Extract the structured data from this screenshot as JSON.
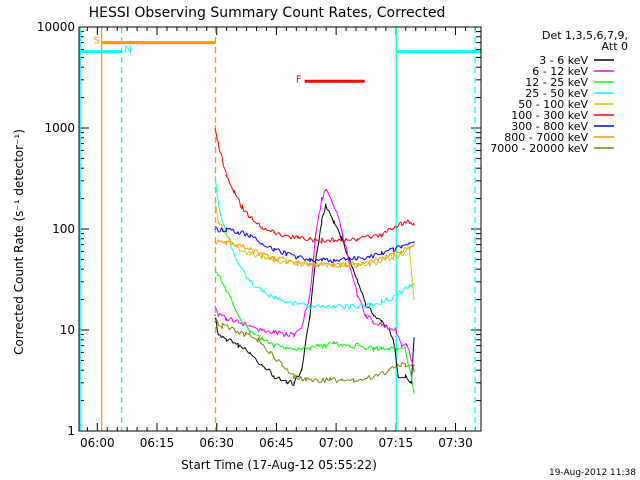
{
  "chart_data": {
    "type": "line",
    "title": "HESSI Observing Summary Count Rates, Corrected",
    "xlabel": "Start Time (17-Aug-12 05:55:22)",
    "ylabel": "Corrected Count Rate (s⁻¹ detector⁻¹)",
    "date_stamp": "19-Aug-2012 11:38",
    "x_axis": {
      "unit": "minutes after 05:55:22",
      "range": [
        0,
        101
      ],
      "ticks": [
        {
          "label": "06:00",
          "value": 4.6
        },
        {
          "label": "06:15",
          "value": 19.6
        },
        {
          "label": "06:30",
          "value": 34.6
        },
        {
          "label": "06:45",
          "value": 49.6
        },
        {
          "label": "07:00",
          "value": 64.6
        },
        {
          "label": "07:15",
          "value": 79.6
        },
        {
          "label": "07:30",
          "value": 94.6
        }
      ]
    },
    "y_axis": {
      "scale": "log",
      "range": [
        1,
        10000
      ],
      "ticks": [
        {
          "label": "1",
          "value": 1
        },
        {
          "label": "10",
          "value": 10
        },
        {
          "label": "100",
          "value": 100
        },
        {
          "label": "1000",
          "value": 1000
        },
        {
          "label": "10000",
          "value": 10000
        }
      ]
    },
    "legend_header": [
      "Det 1,3,5,6,7,9,",
      "Att 0"
    ],
    "grid": false,
    "legend_position": "top-right (outside plot)",
    "series": [
      {
        "name": "3 - 6 keV",
        "color": "#000000",
        "x": [
          34.2,
          35,
          37,
          40,
          43,
          46,
          49,
          52,
          54,
          56,
          58,
          59.5,
          61,
          62,
          64,
          66,
          68,
          70,
          72,
          74,
          76,
          78,
          79,
          80.2,
          82,
          83.5,
          84.2
        ],
        "y": [
          14,
          9,
          8,
          7,
          6,
          4.5,
          3.5,
          3.0,
          3.0,
          4,
          14,
          50,
          120,
          170,
          120,
          80,
          50,
          30,
          18,
          14,
          12,
          10,
          8,
          3.5,
          3.5,
          3,
          8
        ]
      },
      {
        "name": "6 - 12 keV",
        "color": "#ff00ff",
        "x": [
          34.2,
          35,
          37,
          40,
          43,
          46,
          49,
          52,
          54,
          56,
          58,
          59.5,
          61,
          62,
          64,
          66,
          68,
          70,
          72,
          74,
          76,
          78,
          79.5,
          81,
          82.5,
          84.2
        ],
        "y": [
          17,
          14,
          13,
          12,
          11,
          10,
          9.5,
          9,
          9,
          11,
          22,
          90,
          200,
          240,
          170,
          100,
          45,
          22,
          14,
          12,
          11,
          10.5,
          10,
          7,
          7,
          4
        ]
      },
      {
        "name": "12 - 25 keV",
        "color": "#00ff00",
        "x": [
          34.2,
          35,
          37,
          40,
          43,
          46,
          49,
          52,
          54,
          56,
          58,
          60,
          62,
          64,
          66,
          68,
          70,
          72,
          74,
          76,
          78,
          80,
          82,
          84.2
        ],
        "y": [
          42,
          35,
          25,
          14,
          9.5,
          8,
          7,
          6.5,
          6.5,
          6.5,
          6.5,
          7,
          7,
          7.5,
          7,
          7,
          7,
          6.5,
          6.5,
          6.5,
          6.5,
          6.5,
          6.5,
          2.5
        ]
      },
      {
        "name": "25 - 50 keV",
        "color": "#00ffff",
        "x": [
          34.2,
          35,
          37,
          40,
          43,
          46,
          49,
          52,
          55,
          58,
          61,
          64,
          67,
          70,
          73,
          76,
          79,
          81,
          83,
          84.2
        ],
        "y": [
          330,
          180,
          90,
          45,
          30,
          24,
          21,
          19,
          18,
          17,
          17,
          17,
          17,
          17,
          17.5,
          19,
          21,
          24,
          27,
          28
        ]
      },
      {
        "name": "50 - 100 keV",
        "color": "#cccc00",
        "x": [
          34.2,
          35,
          37,
          40,
          43,
          46,
          49,
          52,
          55,
          58,
          61,
          64,
          67,
          70,
          73,
          76,
          79,
          81,
          83,
          84.2
        ],
        "y": [
          180,
          120,
          85,
          65,
          57,
          52,
          49,
          47,
          46,
          45,
          44,
          44,
          44,
          44,
          45,
          48,
          52,
          57,
          62,
          20
        ]
      },
      {
        "name": "100 - 300 keV",
        "color": "#ff0000",
        "x": [
          34.2,
          35,
          36,
          37,
          39,
          41,
          43,
          46,
          49,
          52,
          55,
          58,
          61,
          64,
          67,
          70,
          73,
          76,
          79,
          81,
          83,
          84.2
        ],
        "y": [
          1050,
          700,
          480,
          340,
          230,
          165,
          130,
          105,
          92,
          86,
          82,
          79,
          77,
          77,
          78,
          80,
          83,
          88,
          100,
          112,
          118,
          110
        ]
      },
      {
        "name": "300 - 800 keV",
        "color": "#0000ff",
        "x": [
          34.2,
          37,
          40,
          43,
          46,
          49,
          52,
          55,
          58,
          61,
          64,
          67,
          70,
          73,
          76,
          79,
          81,
          83,
          84.2
        ],
        "y": [
          100,
          98,
          93,
          85,
          72,
          62,
          57,
          52,
          50,
          49,
          49,
          50,
          51,
          53,
          57,
          63,
          68,
          73,
          75
        ]
      },
      {
        "name": "800 - 7000 keV",
        "color": "#ff9900",
        "x": [
          34.2,
          37,
          40,
          43,
          46,
          49,
          52,
          55,
          58,
          61,
          64,
          67,
          70,
          73,
          76,
          79,
          81,
          83,
          84.2
        ],
        "y": [
          75,
          73,
          70,
          63,
          56,
          51,
          48,
          46,
          45,
          44,
          44,
          44,
          45,
          47,
          52,
          57,
          61,
          65,
          68
        ]
      },
      {
        "name": "7000 - 20000 keV",
        "color": "#808000",
        "x": [
          34.2,
          36,
          39,
          42,
          45,
          48,
          51,
          54,
          57,
          60,
          63,
          66,
          69,
          72,
          75,
          78,
          80,
          82,
          84.2
        ],
        "y": [
          12,
          11,
          10,
          9,
          8,
          6,
          4.5,
          3.5,
          3.2,
          3.2,
          3.2,
          3.2,
          3.2,
          3.3,
          3.5,
          4,
          4.5,
          4.5,
          4.5
        ]
      }
    ],
    "state_bars": [
      {
        "label": "S",
        "color": "#ff9900",
        "x_start": 5.7,
        "x_end": 34.3,
        "y": 7000,
        "label_x": 3.6
      },
      {
        "label": "N",
        "color": "#00ffff",
        "x_start": 0,
        "x_end": 10.7,
        "y": 5700,
        "label_x": 11.4
      },
      {
        "label": "",
        "color": "#00ffff",
        "x_start": 79.7,
        "x_end": 101,
        "y": 5700,
        "label_x": null
      },
      {
        "label": "F",
        "color": "#ff0000",
        "x_start": 56.7,
        "x_end": 71.8,
        "y": 2900,
        "label_x": 54.5
      }
    ],
    "vertical_markers": [
      {
        "x": 5.7,
        "color": "#ff9900",
        "style": "solid"
      },
      {
        "x": 34.3,
        "color": "#ff9900",
        "style": "dashed"
      },
      {
        "x": 0.3,
        "color": "#00ffff",
        "style": "solid"
      },
      {
        "x": 10.7,
        "color": "#00ffff",
        "style": "dashed"
      },
      {
        "x": 79.7,
        "color": "#00ffff",
        "style": "solid"
      },
      {
        "x": 99.5,
        "color": "#00ffff",
        "style": "dashed"
      }
    ]
  }
}
